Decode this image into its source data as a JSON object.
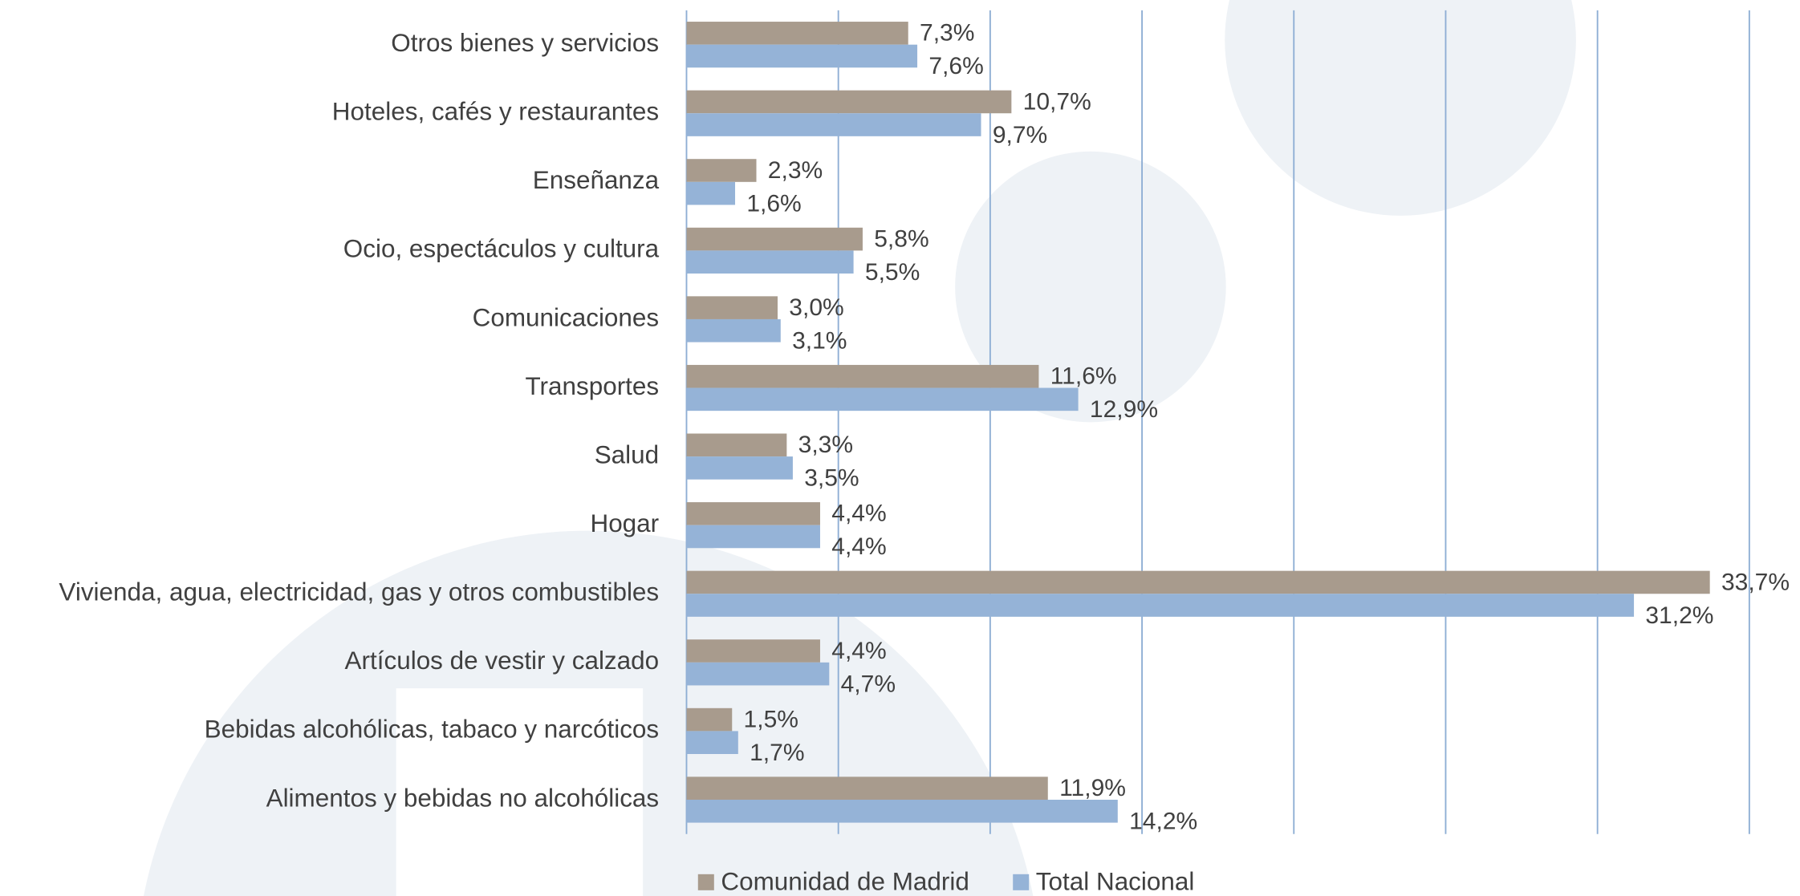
{
  "chart_data": {
    "type": "barh",
    "categories": [
      "Otros bienes y servicios",
      "Hoteles, cafés y restaurantes",
      "Enseñanza",
      "Ocio, espectáculos y cultura",
      "Comunicaciones",
      "Transportes",
      "Salud",
      "Hogar",
      "Vivienda, agua, electricidad, gas y otros combustibles",
      "Artículos de vestir y calzado",
      "Bebidas alcohólicas, tabaco y narcóticos",
      "Alimentos y bebidas no alcohólicas"
    ],
    "series": [
      {
        "name": "Comunidad de Madrid",
        "color": "#a89b8d",
        "values": [
          7.3,
          10.7,
          2.3,
          5.8,
          3.0,
          11.6,
          3.3,
          4.4,
          33.7,
          4.4,
          1.5,
          11.9
        ],
        "value_labels": [
          "7,3%",
          "10,7%",
          "2,3%",
          "5,8%",
          "3,0%",
          "11,6%",
          "3,3%",
          "4,4%",
          "33,7%",
          "4,4%",
          "1,5%",
          "11,9%"
        ]
      },
      {
        "name": "Total Nacional",
        "color": "#95b3d7",
        "values": [
          7.6,
          9.7,
          1.6,
          5.5,
          3.1,
          12.9,
          3.5,
          4.4,
          31.2,
          4.7,
          1.7,
          14.2
        ],
        "value_labels": [
          "7,6%",
          "9,7%",
          "1,6%",
          "5,5%",
          "3,1%",
          "12,9%",
          "3,5%",
          "4,4%",
          "31,2%",
          "4,7%",
          "1,7%",
          "14,2%"
        ]
      }
    ],
    "xlim": [
      0,
      35
    ],
    "xticks": [
      0,
      5,
      10,
      15,
      20,
      25,
      30,
      35
    ],
    "grid": true,
    "legend": "bottom"
  }
}
